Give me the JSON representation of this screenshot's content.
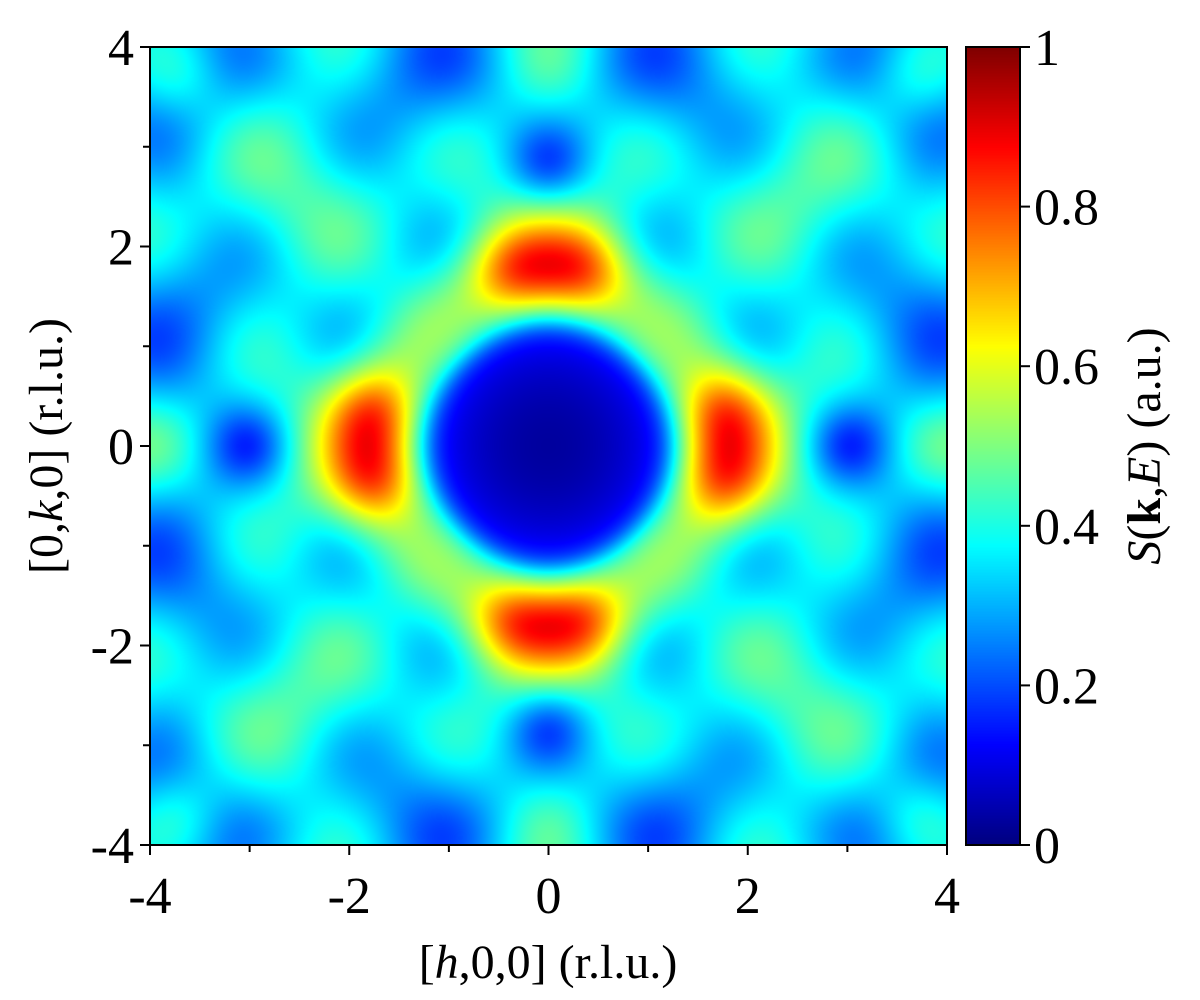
{
  "chart_data": {
    "type": "heatmap",
    "xlabel": "[h,0,0] (r.l.u.)",
    "ylabel": "[0,k,0] (r.l.u.)",
    "colorbar_label": "S(k,E) (a.u.)",
    "xlim": [
      -4,
      4
    ],
    "ylim": [
      -4,
      4
    ],
    "clim": [
      0,
      1
    ],
    "colormap": "jet",
    "x_ticks": [
      {
        "value": -4,
        "label": "-4"
      },
      {
        "value": -2,
        "label": "-2"
      },
      {
        "value": 0,
        "label": "0"
      },
      {
        "value": 2,
        "label": "2"
      },
      {
        "value": 4,
        "label": "4"
      }
    ],
    "y_ticks": [
      {
        "value": 4,
        "label": "4"
      },
      {
        "value": 2,
        "label": "2"
      },
      {
        "value": 0,
        "label": "0"
      },
      {
        "value": -2,
        "label": "-2"
      },
      {
        "value": -4,
        "label": "-4"
      }
    ],
    "colorbar_ticks": [
      {
        "value": 1,
        "label": "1"
      },
      {
        "value": 0.8,
        "label": "0.8"
      },
      {
        "value": 0.6,
        "label": "0.6"
      },
      {
        "value": 0.4,
        "label": "0.4"
      },
      {
        "value": 0.2,
        "label": "0.2"
      },
      {
        "value": 0,
        "label": "0"
      }
    ],
    "features": {
      "background": 0.35,
      "central_minimum": {
        "h": 0,
        "k": 0,
        "value": 0.03,
        "radius": 1.2
      },
      "ring": {
        "radius": 1.75,
        "value": 0.57
      },
      "peaks": [
        {
          "h": -1.75,
          "k": 0.35,
          "value": 0.72
        },
        {
          "h": -1.75,
          "k": -0.35,
          "value": 0.72
        },
        {
          "h": 1.75,
          "k": 0.35,
          "value": 0.72
        },
        {
          "h": 1.75,
          "k": -0.35,
          "value": 0.72
        },
        {
          "h": 0.35,
          "k": 1.75,
          "value": 0.72
        },
        {
          "h": -0.35,
          "k": 1.75,
          "value": 0.72
        },
        {
          "h": 0.35,
          "k": -1.75,
          "value": 0.72
        },
        {
          "h": -0.35,
          "k": -1.75,
          "value": 0.72
        },
        {
          "h": -3.7,
          "k": 3.7,
          "value": 0.62
        },
        {
          "h": 3.7,
          "k": 3.7,
          "value": 0.62
        },
        {
          "h": -3.7,
          "k": -3.7,
          "value": 0.62
        },
        {
          "h": 3.7,
          "k": -3.7,
          "value": 0.62
        },
        {
          "h": 0,
          "k": 3.7,
          "value": 0.55
        },
        {
          "h": 0,
          "k": -3.7,
          "value": 0.55
        },
        {
          "h": 3.9,
          "k": 0,
          "value": 0.55
        },
        {
          "h": -3.9,
          "k": 0,
          "value": 0.55
        }
      ],
      "secondary_minima": [
        {
          "h": -3,
          "k": 0,
          "value": 0.2
        },
        {
          "h": 3,
          "k": 0,
          "value": 0.2
        },
        {
          "h": 0,
          "k": 2.8,
          "value": 0.2
        },
        {
          "h": 0,
          "k": -2.8,
          "value": 0.2
        }
      ]
    }
  }
}
